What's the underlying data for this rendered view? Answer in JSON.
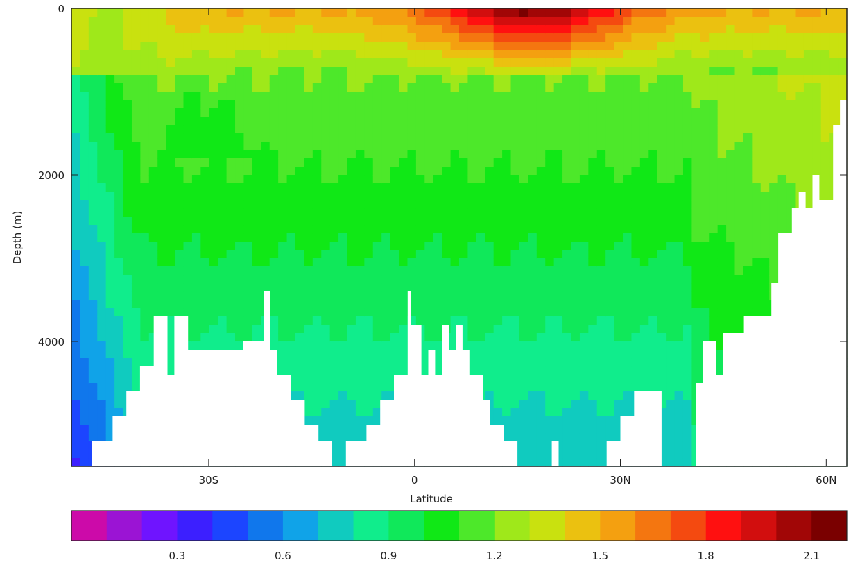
{
  "chart_data": {
    "type": "heatmap",
    "title": "",
    "xlabel": "Latitude",
    "ylabel": "Depth (m)",
    "xlim": [
      -50,
      63
    ],
    "ylim": [
      5500,
      0
    ],
    "y_inverted": true,
    "x_ticks": [
      {
        "value": -30,
        "label": "30S"
      },
      {
        "value": 0,
        "label": "0"
      },
      {
        "value": 30,
        "label": "30N"
      },
      {
        "value": 60,
        "label": "60N"
      }
    ],
    "y_ticks": [
      {
        "value": 0,
        "label": "0"
      },
      {
        "value": 2000,
        "label": "2000"
      },
      {
        "value": 4000,
        "label": "4000"
      }
    ],
    "colorbar": {
      "levels": [
        0.0,
        0.15,
        0.3,
        0.45,
        0.6,
        0.75,
        0.9,
        1.05,
        1.2,
        1.35,
        1.5,
        1.65,
        1.8,
        1.95,
        2.1,
        2.25
      ],
      "colors": [
        "#cc0aa9",
        "#9b14d4",
        "#6f14ff",
        "#3c1fff",
        "#1c45ff",
        "#1077ec",
        "#10a3e8",
        "#10cbbf",
        "#10ed8c",
        "#10e85a",
        "#10e816",
        "#4de82a",
        "#9fe81a",
        "#c9e10f",
        "#ebc110",
        "#f4a010",
        "#f47610",
        "#f44a10",
        "#ff1010",
        "#d20e0e",
        "#a10606",
        "#7a0000"
      ],
      "tick_labels": [
        "0.3",
        "0.6",
        "0.9",
        "1.2",
        "1.5",
        "1.8",
        "2.1"
      ]
    },
    "field_description_values": {
      "surface_max": 2.25,
      "deep_min": 0.6
    },
    "grid": false
  }
}
